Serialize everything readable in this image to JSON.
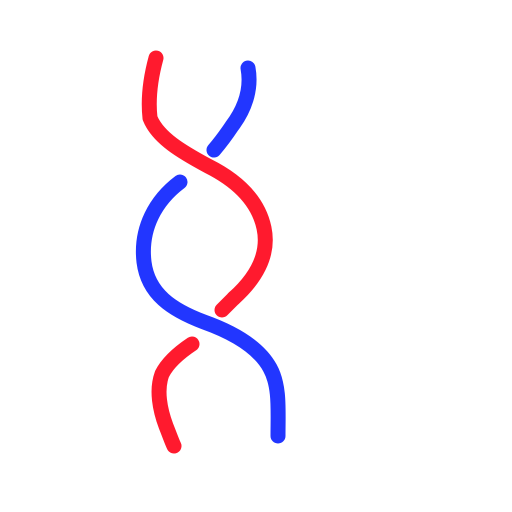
{
  "canvas": {
    "background": "#ffffff"
  },
  "diagram": {
    "type": "two-strand braid sketch",
    "strands": [
      {
        "name": "red-strand",
        "color": "#ff1a2e"
      },
      {
        "name": "blue-strand",
        "color": "#2236ff"
      }
    ],
    "crossings": [
      {
        "index": 1,
        "over_strand": "red-strand"
      },
      {
        "index": 2,
        "over_strand": "blue-strand"
      }
    ]
  }
}
